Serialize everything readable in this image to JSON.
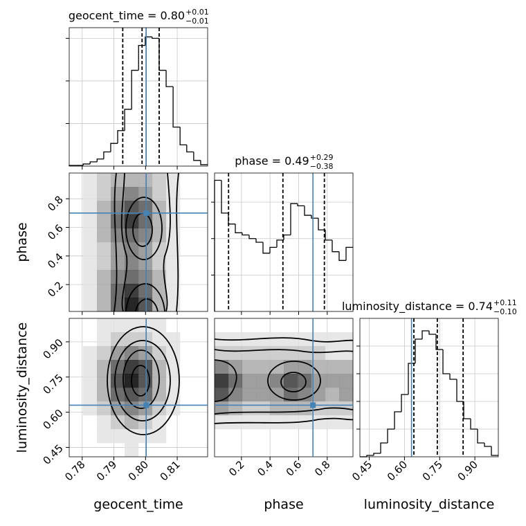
{
  "chart_data": {
    "type": "corner",
    "grid": true,
    "truth_color": "#4682b4",
    "hist_color": "#000000",
    "params": [
      {
        "name": "geocent_time",
        "title": "geocent_time = 0.80",
        "title_upper": "+0.01",
        "title_lower": "−0.01",
        "lim": [
          0.7759,
          0.8196
        ],
        "ticks": [
          0.78,
          0.79,
          {
            "value": 0.8,
            "label": "0.80"
          },
          0.81
        ],
        "quantiles": [
          0.7928,
          0.7989,
          0.8043
        ],
        "truth": 0.8002,
        "hist": {
          "bins": [
            0.7759,
            0.7781,
            0.7803,
            0.7825,
            0.7847,
            0.7868,
            0.789,
            0.7912,
            0.7934,
            0.7956,
            0.7978,
            0.7999,
            0.8021,
            0.8043,
            0.8065,
            0.8087,
            0.8109,
            0.813,
            0.8152,
            0.8174,
            0.8196
          ],
          "counts": [
            1,
            1,
            3,
            6,
            10,
            20,
            32,
            50,
            80,
            135,
            170,
            182,
            180,
            135,
            112,
            55,
            30,
            20,
            8,
            2
          ],
          "ylim": [
            0,
            195
          ],
          "yticks": [
            60,
            120,
            180
          ]
        }
      },
      {
        "name": "phase",
        "title": "phase = 0.49",
        "title_upper": "+0.29",
        "title_lower": "−0.38",
        "lim": [
          0.012,
          0.98
        ],
        "ticks": [
          0.2,
          0.4,
          0.6,
          0.8
        ],
        "quantiles": [
          0.11,
          0.49,
          0.78
        ],
        "truth": 0.7,
        "hist": {
          "bins": [
            0.012,
            0.0604,
            0.1088,
            0.1572,
            0.2056,
            0.254,
            0.3024,
            0.3508,
            0.3992,
            0.4476,
            0.496,
            0.5444,
            0.5928,
            0.6412,
            0.6896,
            0.738,
            0.7864,
            0.8348,
            0.8832,
            0.9316,
            0.98
          ],
          "counts": [
            180,
            135,
            120,
            108,
            105,
            100,
            95,
            80,
            88,
            98,
            105,
            148,
            145,
            132,
            128,
            112,
            98,
            82,
            70,
            88
          ],
          "ylim": [
            0,
            190
          ],
          "yticks": [
            50,
            100,
            150
          ]
        }
      },
      {
        "name": "luminosity_distance",
        "title": "luminosity_distance = 0.74",
        "title_upper": "+0.11",
        "title_lower": "−0.10",
        "lim": [
          0.41,
          1.0
        ],
        "ticks": [
          0.45,
          {
            "value": 0.6,
            "label": "0.60"
          },
          0.75,
          {
            "value": 0.9,
            "label": "0.90"
          }
        ],
        "quantiles": [
          0.64,
          0.74,
          0.85
        ],
        "truth": 0.63,
        "hist": {
          "bins": [
            0.41,
            0.4395,
            0.469,
            0.4985,
            0.528,
            0.5575,
            0.587,
            0.6165,
            0.646,
            0.6755,
            0.705,
            0.7345,
            0.764,
            0.7935,
            0.823,
            0.8525,
            0.882,
            0.9115,
            0.941,
            0.9705,
            1.0
          ],
          "counts": [
            0,
            2,
            5,
            20,
            40,
            65,
            90,
            135,
            170,
            182,
            177,
            155,
            120,
            112,
            80,
            55,
            40,
            20,
            15,
            2
          ],
          "ylim": [
            0,
            200
          ],
          "yticks": [
            40,
            80,
            120,
            160
          ]
        }
      }
    ],
    "panels": [
      {
        "x": 0,
        "y": 1,
        "density": [
          [
            0,
            1,
            2,
            3,
            3,
            3,
            2,
            1,
            0,
            0
          ],
          [
            0,
            1,
            2,
            4,
            5,
            4,
            2,
            1,
            0,
            0
          ],
          [
            0,
            1,
            3,
            5,
            7,
            6,
            3,
            1,
            0,
            0
          ],
          [
            0,
            1,
            3,
            6,
            8,
            6,
            3,
            1,
            0,
            0
          ],
          [
            0,
            1,
            3,
            5,
            6,
            5,
            3,
            1,
            0,
            0
          ],
          [
            0,
            1,
            2,
            4,
            5,
            4,
            2,
            1,
            0,
            0
          ],
          [
            0,
            1,
            2,
            4,
            5,
            4,
            2,
            1,
            0,
            0
          ],
          [
            0,
            1,
            3,
            5,
            6,
            5,
            3,
            1,
            0,
            0
          ],
          [
            0,
            1,
            3,
            6,
            8,
            6,
            3,
            1,
            0,
            0
          ],
          [
            0,
            1,
            3,
            6,
            9,
            7,
            3,
            1,
            0,
            0
          ]
        ]
      },
      {
        "x": 0,
        "y": 2,
        "density": [
          [
            0,
            0,
            1,
            1,
            1,
            1,
            1,
            0,
            0,
            0
          ],
          [
            0,
            0,
            1,
            2,
            2,
            2,
            1,
            1,
            0,
            0
          ],
          [
            0,
            1,
            2,
            4,
            5,
            4,
            2,
            1,
            0,
            0
          ],
          [
            0,
            1,
            3,
            6,
            8,
            7,
            3,
            1,
            0,
            0
          ],
          [
            0,
            1,
            3,
            7,
            9,
            7,
            3,
            1,
            0,
            0
          ],
          [
            0,
            1,
            3,
            6,
            7,
            6,
            3,
            1,
            0,
            0
          ],
          [
            0,
            1,
            2,
            4,
            5,
            4,
            2,
            1,
            0,
            0
          ],
          [
            0,
            0,
            1,
            2,
            3,
            2,
            1,
            0,
            0,
            0
          ],
          [
            0,
            0,
            1,
            1,
            1,
            1,
            1,
            0,
            0,
            0
          ],
          [
            0,
            0,
            0,
            0,
            1,
            0,
            0,
            0,
            0,
            0
          ]
        ]
      },
      {
        "x": 1,
        "y": 2,
        "density": [
          [
            0,
            0,
            0,
            0,
            0,
            0,
            0,
            0,
            0,
            0
          ],
          [
            1,
            1,
            1,
            1,
            1,
            1,
            1,
            1,
            1,
            1
          ],
          [
            2,
            2,
            2,
            2,
            2,
            2,
            2,
            2,
            1,
            1
          ],
          [
            5,
            4,
            3,
            3,
            3,
            4,
            4,
            3,
            3,
            3
          ],
          [
            8,
            6,
            4,
            4,
            5,
            7,
            6,
            4,
            4,
            4
          ],
          [
            7,
            5,
            4,
            4,
            4,
            6,
            5,
            4,
            3,
            4
          ],
          [
            4,
            3,
            2,
            2,
            3,
            3,
            3,
            2,
            2,
            2
          ],
          [
            1,
            1,
            1,
            1,
            1,
            1,
            1,
            1,
            1,
            1
          ],
          [
            0,
            0,
            0,
            0,
            0,
            0,
            0,
            0,
            0,
            0
          ],
          [
            0,
            0,
            0,
            0,
            0,
            0,
            0,
            0,
            0,
            0
          ]
        ]
      }
    ]
  }
}
